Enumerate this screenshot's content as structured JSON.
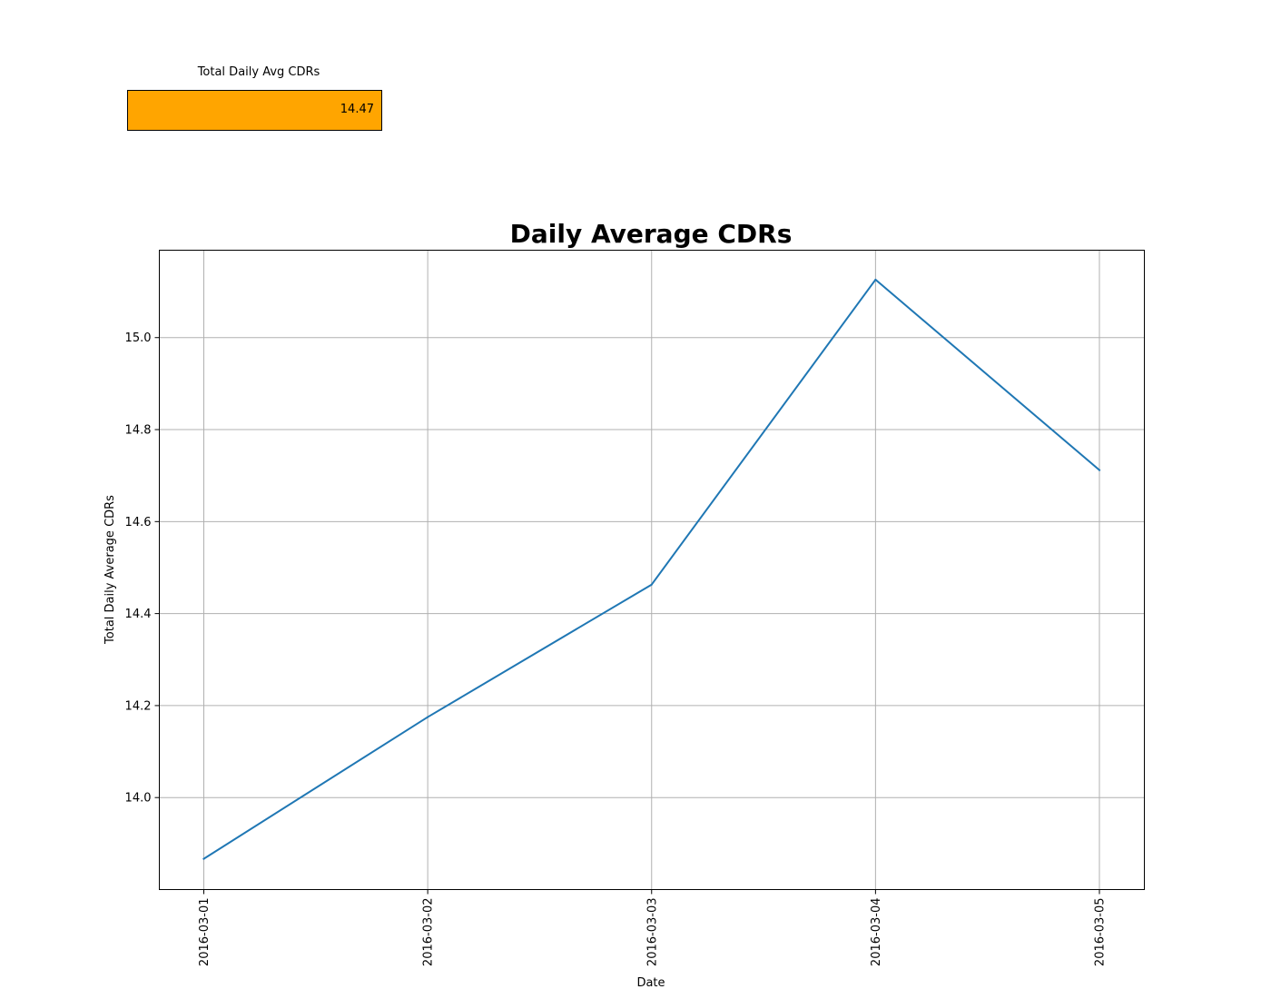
{
  "kpi": {
    "title": "Total Daily Avg CDRs",
    "value": "14.47",
    "color": "#ffa500"
  },
  "chart_data": {
    "type": "line",
    "title": "Daily Average CDRs",
    "xlabel": "Date",
    "ylabel": "Total Daily Average CDRs",
    "categories": [
      "2016-03-01",
      "2016-03-02",
      "2016-03-03",
      "2016-03-04",
      "2016-03-05"
    ],
    "series": [
      {
        "values": [
          13.867,
          14.175,
          14.463,
          15.126,
          14.712
        ],
        "color": "#1f77b4"
      }
    ],
    "ylim": [
      13.8,
      15.19
    ],
    "yticks": [
      "14.0",
      "14.2",
      "14.4",
      "14.6",
      "14.8",
      "15.0"
    ],
    "grid": true,
    "legend": "none"
  }
}
